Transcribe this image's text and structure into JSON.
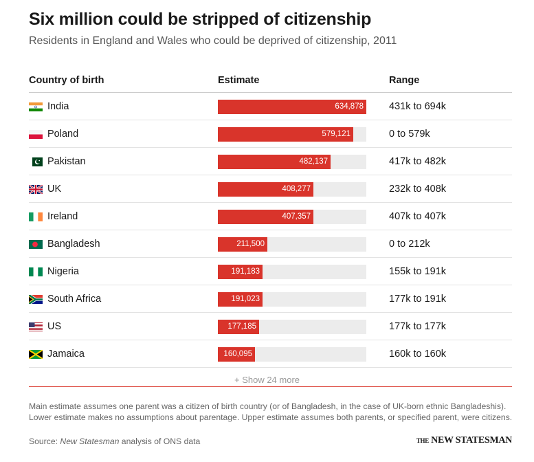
{
  "header": {
    "title": "Six million could be stripped of citizenship",
    "subtitle": "Residents in England and Wales who could be deprived of citizenship, 2011"
  },
  "columns": {
    "country": "Country of birth",
    "estimate": "Estimate",
    "range": "Range"
  },
  "chart_data": {
    "type": "table",
    "title": "Six million could be stripped of citizenship",
    "subtitle": "Residents in England and Wales who could be deprived of citizenship, 2011",
    "columns": [
      "Country of birth",
      "Estimate",
      "Range"
    ],
    "max": 634878,
    "rows": [
      {
        "country": "India",
        "flag": "india-flag",
        "value": 634878,
        "label": "634,878",
        "range": "431k to 694k"
      },
      {
        "country": "Poland",
        "flag": "poland-flag",
        "value": 579121,
        "label": "579,121",
        "range": "0 to 579k"
      },
      {
        "country": "Pakistan",
        "flag": "pakistan-flag",
        "value": 482137,
        "label": "482,137",
        "range": "417k to 482k"
      },
      {
        "country": "UK",
        "flag": "uk-flag",
        "value": 408277,
        "label": "408,277",
        "range": "232k to 408k"
      },
      {
        "country": "Ireland",
        "flag": "ireland-flag",
        "value": 407357,
        "label": "407,357",
        "range": "407k to 407k"
      },
      {
        "country": "Bangladesh",
        "flag": "bangladesh-flag",
        "value": 211500,
        "label": "211,500",
        "range": "0 to 212k"
      },
      {
        "country": "Nigeria",
        "flag": "nigeria-flag",
        "value": 191183,
        "label": "191,183",
        "range": "155k to 191k"
      },
      {
        "country": "South Africa",
        "flag": "south-africa-flag",
        "value": 191023,
        "label": "191,023",
        "range": "177k to 191k"
      },
      {
        "country": "US",
        "flag": "us-flag",
        "value": 177185,
        "label": "177,185",
        "range": "177k to 177k"
      },
      {
        "country": "Jamaica",
        "flag": "jamaica-flag",
        "value": 160095,
        "label": "160,095",
        "range": "160k to 160k"
      }
    ]
  },
  "colors": {
    "bar": "#d9342b",
    "track": "#ececec"
  },
  "show_more": "+ Show 24 more",
  "footer": {
    "note": "Main estimate assumes one parent was a citizen of birth country (or of Bangladesh, in the case of UK-born ethnic Bangladeshis). Lower estimate makes no assumptions about parentage. Upper estimate assumes both parents, or specified parent, were citizens.",
    "source_prefix": "Source: ",
    "source_publication": "New Statesman",
    "source_rest": " analysis of ONS data",
    "logo_text": "NEW STATESMAN"
  }
}
